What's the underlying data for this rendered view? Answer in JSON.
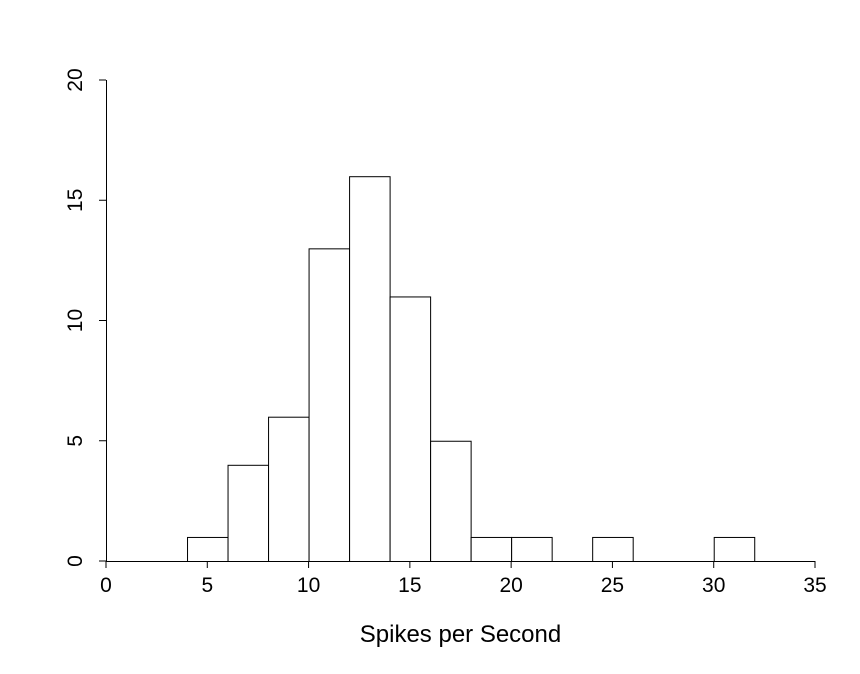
{
  "chart_data": {
    "type": "bar",
    "title": "",
    "xlabel": "Spikes per Second",
    "ylabel": "",
    "bins": [
      {
        "from": 4,
        "to": 6,
        "count": 1
      },
      {
        "from": 6,
        "to": 8,
        "count": 4
      },
      {
        "from": 8,
        "to": 10,
        "count": 6
      },
      {
        "from": 10,
        "to": 12,
        "count": 13
      },
      {
        "from": 12,
        "to": 14,
        "count": 16
      },
      {
        "from": 14,
        "to": 16,
        "count": 11
      },
      {
        "from": 16,
        "to": 18,
        "count": 5
      },
      {
        "from": 18,
        "to": 20,
        "count": 1
      },
      {
        "from": 20,
        "to": 22,
        "count": 1
      },
      {
        "from": 24,
        "to": 26,
        "count": 1
      },
      {
        "from": 30,
        "to": 32,
        "count": 1
      }
    ],
    "xlim": [
      0,
      35
    ],
    "ylim": [
      0,
      20
    ],
    "x_ticks": [
      "0",
      "5",
      "10",
      "15",
      "20",
      "25",
      "30",
      "35"
    ],
    "y_ticks": [
      "0",
      "5",
      "10",
      "15",
      "20"
    ],
    "grid": false,
    "colors": {
      "bar_fill": "#ffffff",
      "bar_stroke": "#000000"
    }
  }
}
